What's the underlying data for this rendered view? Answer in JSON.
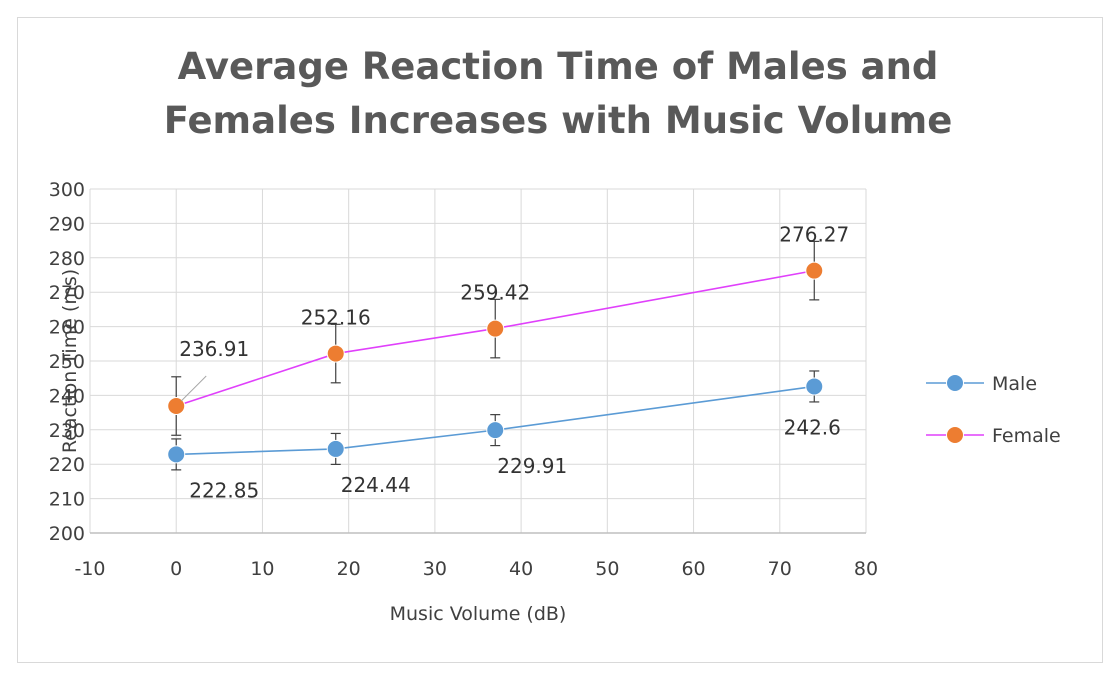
{
  "chart_data": {
    "type": "line",
    "title_lines": [
      "Average Reaction Time of Males and",
      "Females Increases with Music Volume"
    ],
    "xlabel": "Music Volume (dB)",
    "ylabel": "Reaction Time (ms)",
    "xlim": [
      -10,
      80
    ],
    "ylim": [
      200,
      300
    ],
    "xticks": [
      -10,
      0,
      10,
      20,
      30,
      40,
      50,
      60,
      70,
      80
    ],
    "yticks": [
      200,
      210,
      220,
      230,
      240,
      250,
      260,
      270,
      280,
      290,
      300
    ],
    "grid": true,
    "legend_position": "right",
    "series": [
      {
        "name": "Male",
        "line_color": "#5b9bd5",
        "marker_color": "#5b9bd5",
        "x": [
          0,
          18.5,
          37,
          74
        ],
        "y": [
          222.85,
          224.44,
          229.91,
          242.6
        ],
        "labels": [
          "222.85",
          "224.44",
          "229.91",
          "242.6"
        ],
        "error": [
          4.5,
          4.5,
          4.5,
          4.5
        ]
      },
      {
        "name": "Female",
        "line_color": "#e040fb",
        "marker_color": "#ed7d31",
        "x": [
          0,
          18.5,
          37,
          74
        ],
        "y": [
          236.91,
          252.16,
          259.42,
          276.27
        ],
        "labels": [
          "236.91",
          "252.16",
          "259.42",
          "276.27"
        ],
        "error": [
          8.5,
          8.5,
          8.5,
          8.5
        ]
      }
    ]
  }
}
